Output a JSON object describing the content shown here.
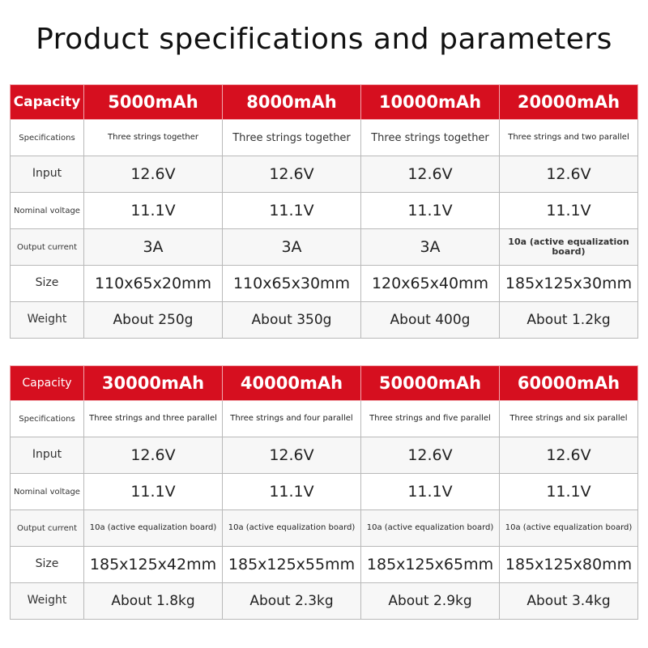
{
  "title": "Product specifications and parameters",
  "table1": {
    "header": {
      "label": "Capacity",
      "cols": [
        "5000mAh",
        "8000mAh",
        "10000mAh",
        "20000mAh"
      ]
    },
    "rows": {
      "specifications": {
        "label": "Specifications",
        "values": [
          "Three strings together",
          "Three strings together",
          "Three strings together",
          "Three strings and two parallel"
        ]
      },
      "input": {
        "label": "Input",
        "values": [
          "12.6V",
          "12.6V",
          "12.6V",
          "12.6V"
        ]
      },
      "nominal_voltage": {
        "label": "Nominal voltage",
        "values": [
          "11.1V",
          "11.1V",
          "11.1V",
          "11.1V"
        ]
      },
      "output_current": {
        "label": "Output current",
        "values": [
          "3A",
          "3A",
          "3A",
          "10a (active equalization board)"
        ]
      },
      "size": {
        "label": "Size",
        "values": [
          "110x65x20mm",
          "110x65x30mm",
          "120x65x40mm",
          "185x125x30mm"
        ]
      },
      "weight": {
        "label": "Weight",
        "values": [
          "About 250g",
          "About 350g",
          "About 400g",
          "About 1.2kg"
        ]
      }
    }
  },
  "table2": {
    "header": {
      "label": "Capacity",
      "cols": [
        "30000mAh",
        "40000mAh",
        "50000mAh",
        "60000mAh"
      ]
    },
    "rows": {
      "specifications": {
        "label": "Specifications",
        "values": [
          "Three strings and three parallel",
          "Three strings and four parallel",
          "Three strings and five parallel",
          "Three strings and six parallel"
        ]
      },
      "input": {
        "label": "Input",
        "values": [
          "12.6V",
          "12.6V",
          "12.6V",
          "12.6V"
        ]
      },
      "nominal_voltage": {
        "label": "Nominal voltage",
        "values": [
          "11.1V",
          "11.1V",
          "11.1V",
          "11.1V"
        ]
      },
      "output_current": {
        "label": "Output current",
        "values": [
          "10a (active equalization board)",
          "10a (active equalization board)",
          "10a (active equalization board)",
          "10a (active equalization board)"
        ]
      },
      "size": {
        "label": "Size",
        "values": [
          "185x125x42mm",
          "185x125x55mm",
          "185x125x65mm",
          "185x125x80mm"
        ]
      },
      "weight": {
        "label": "Weight",
        "values": [
          "About 1.8kg",
          "About 2.3kg",
          "About 2.9kg",
          "About 3.4kg"
        ]
      }
    }
  },
  "colors": {
    "header_red": "#d60f1f",
    "grid": "#b9b9b9"
  }
}
